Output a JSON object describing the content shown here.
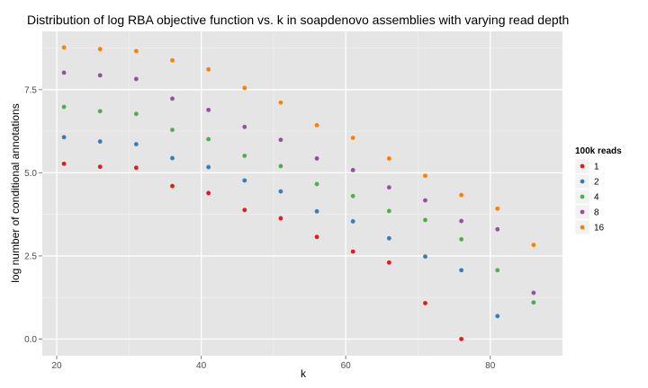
{
  "chart_data": {
    "type": "scatter",
    "title": "Distribution of log RBA objective function vs. k in soapdenovo assemblies with varying read depth",
    "xlabel": "k",
    "ylabel": "log number of conditional annotations",
    "xlim": [
      18,
      90
    ],
    "ylim": [
      -0.5,
      9.25
    ],
    "x_ticks": [
      {
        "value": 20,
        "label": "20"
      },
      {
        "value": 40,
        "label": "40"
      },
      {
        "value": 60,
        "label": "60"
      },
      {
        "value": 80,
        "label": "80"
      }
    ],
    "y_ticks": [
      {
        "value": 0,
        "label": "0.0"
      },
      {
        "value": 2.5,
        "label": "2.5"
      },
      {
        "value": 5,
        "label": "5.0"
      },
      {
        "value": 7.5,
        "label": "7.5"
      }
    ],
    "grid": true,
    "background": "#e5e5e5",
    "legend": {
      "title": "100k reads",
      "position": "right"
    },
    "series": [
      {
        "name": "1",
        "color": "#e41a1c",
        "x": [
          21,
          26,
          31,
          36,
          41,
          46,
          51,
          56,
          61,
          66,
          71,
          76
        ],
        "y": [
          5.27,
          5.18,
          5.15,
          4.6,
          4.39,
          3.88,
          3.63,
          3.07,
          2.63,
          2.3,
          1.08,
          0.0
        ]
      },
      {
        "name": "2",
        "color": "#377eb8",
        "x": [
          21,
          26,
          31,
          36,
          41,
          46,
          51,
          56,
          61,
          66,
          71,
          76,
          81
        ],
        "y": [
          6.07,
          5.94,
          5.86,
          5.44,
          5.17,
          4.77,
          4.44,
          3.84,
          3.54,
          3.03,
          2.48,
          2.07,
          0.69
        ]
      },
      {
        "name": "4",
        "color": "#4daf4a",
        "x": [
          21,
          26,
          31,
          36,
          41,
          46,
          51,
          56,
          61,
          66,
          71,
          76,
          81,
          86
        ],
        "y": [
          6.98,
          6.85,
          6.77,
          6.29,
          6.01,
          5.51,
          5.2,
          4.66,
          4.3,
          3.85,
          3.58,
          3.0,
          2.07,
          1.1
        ]
      },
      {
        "name": "8",
        "color": "#984ea3",
        "x": [
          21,
          26,
          31,
          36,
          41,
          46,
          51,
          56,
          61,
          66,
          71,
          76,
          81,
          86
        ],
        "y": [
          8.01,
          7.93,
          7.82,
          7.23,
          6.89,
          6.38,
          5.99,
          5.43,
          5.08,
          4.56,
          4.17,
          3.55,
          3.3,
          1.39
        ]
      },
      {
        "name": "16",
        "color": "#ff7f00",
        "x": [
          21,
          26,
          31,
          36,
          41,
          46,
          51,
          56,
          61,
          66,
          71,
          76,
          81,
          86
        ],
        "y": [
          8.77,
          8.72,
          8.66,
          8.38,
          8.11,
          7.55,
          7.11,
          6.43,
          6.05,
          5.43,
          4.91,
          4.33,
          3.92,
          2.83
        ]
      }
    ]
  }
}
